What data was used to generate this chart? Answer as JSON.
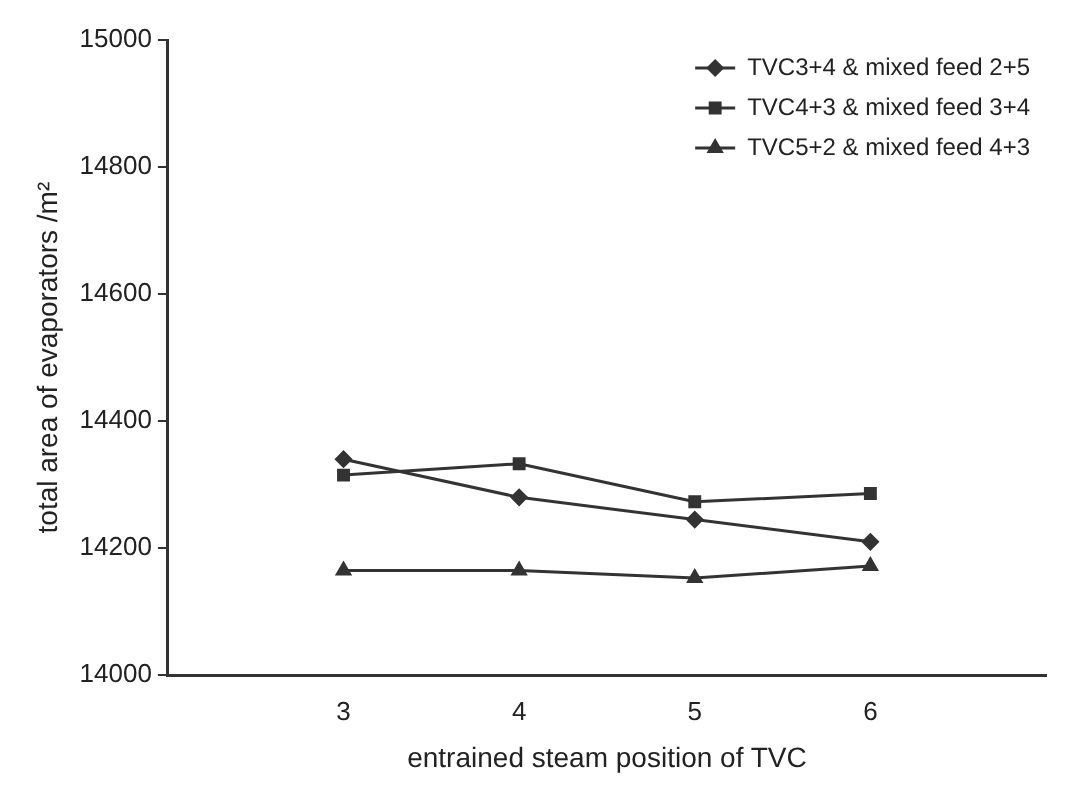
{
  "chart_data": {
    "type": "line",
    "xlabel": "entrained steam position of TVC",
    "ylabel": "total area of evaporators /m²",
    "x": [
      3,
      4,
      5,
      6
    ],
    "xlim": [
      2,
      7
    ],
    "xticks": [
      3,
      4,
      5,
      6
    ],
    "ylim": [
      14000,
      15000
    ],
    "yticks": [
      14000,
      14200,
      14400,
      14600,
      14800,
      15000
    ],
    "grid": false,
    "legend": "top right",
    "line_style": "solid",
    "series": [
      {
        "name": "TVC3+4 & mixed feed 2+5",
        "color": "#333333",
        "marker": "diamond",
        "values": [
          14340,
          14280,
          14245,
          14210
        ]
      },
      {
        "name": "TVC4+3 & mixed feed 3+4",
        "color": "#333333",
        "marker": "square",
        "values": [
          14315,
          14333,
          14273,
          14286
        ]
      },
      {
        "name": "TVC5+2 & mixed feed 4+3",
        "color": "#333333",
        "marker": "triangle",
        "values": [
          14165,
          14165,
          14153,
          14172
        ]
      }
    ]
  }
}
